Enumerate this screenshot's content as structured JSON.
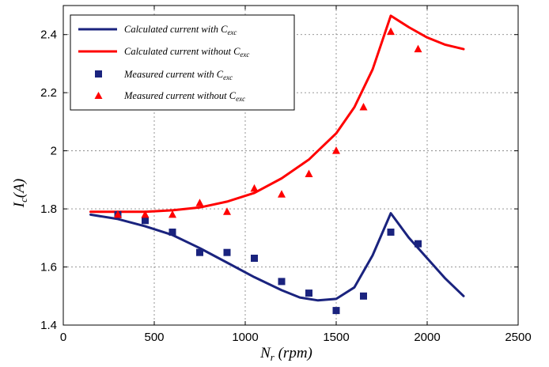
{
  "chart_data": {
    "type": "line",
    "xlabel": {
      "main": "N",
      "sub": "r",
      "rest": " (rpm)"
    },
    "ylabel": {
      "main": "I",
      "sub": "c",
      "rest": "(A)"
    },
    "xlim": [
      0,
      2500
    ],
    "ylim": [
      1.4,
      2.5
    ],
    "x_ticks": [
      0,
      500,
      1000,
      1500,
      2000,
      2500
    ],
    "x_tick_labels": [
      "0",
      "500",
      "1000",
      "1500",
      "2000",
      "2500"
    ],
    "y_ticks": [
      1.4,
      1.6,
      1.8,
      2.0,
      2.2,
      2.4
    ],
    "y_tick_labels": [
      "1.4",
      "1.6",
      "1.8",
      "2",
      "2.2",
      "2.4"
    ],
    "grid": true,
    "legend_position": "top-left",
    "series": [
      {
        "name": "Calculated current with C",
        "name_sub": "exc",
        "kind": "line",
        "color": "#1a237e",
        "points": [
          [
            150,
            1.78
          ],
          [
            300,
            1.765
          ],
          [
            450,
            1.74
          ],
          [
            600,
            1.71
          ],
          [
            750,
            1.665
          ],
          [
            900,
            1.615
          ],
          [
            1050,
            1.565
          ],
          [
            1200,
            1.52
          ],
          [
            1300,
            1.495
          ],
          [
            1400,
            1.485
          ],
          [
            1500,
            1.49
          ],
          [
            1600,
            1.53
          ],
          [
            1700,
            1.64
          ],
          [
            1800,
            1.785
          ],
          [
            1900,
            1.7
          ],
          [
            2000,
            1.63
          ],
          [
            2100,
            1.56
          ],
          [
            2200,
            1.5
          ]
        ]
      },
      {
        "name": "Calculated current without C",
        "name_sub": "exc",
        "kind": "line",
        "color": "#ff0000",
        "points": [
          [
            150,
            1.79
          ],
          [
            300,
            1.79
          ],
          [
            450,
            1.79
          ],
          [
            600,
            1.795
          ],
          [
            750,
            1.805
          ],
          [
            900,
            1.825
          ],
          [
            1050,
            1.855
          ],
          [
            1200,
            1.905
          ],
          [
            1350,
            1.97
          ],
          [
            1500,
            2.06
          ],
          [
            1600,
            2.15
          ],
          [
            1700,
            2.28
          ],
          [
            1800,
            2.465
          ],
          [
            1900,
            2.425
          ],
          [
            2000,
            2.39
          ],
          [
            2100,
            2.365
          ],
          [
            2200,
            2.35
          ]
        ]
      },
      {
        "name": "Measured current with C",
        "name_sub": "exc",
        "kind": "scatter",
        "marker": "square",
        "color": "#1a237e",
        "points": [
          [
            300,
            1.78
          ],
          [
            450,
            1.76
          ],
          [
            600,
            1.72
          ],
          [
            750,
            1.65
          ],
          [
            900,
            1.65
          ],
          [
            1050,
            1.63
          ],
          [
            1200,
            1.55
          ],
          [
            1350,
            1.51
          ],
          [
            1500,
            1.45
          ],
          [
            1650,
            1.5
          ],
          [
            1800,
            1.72
          ],
          [
            1950,
            1.68
          ]
        ]
      },
      {
        "name": "Measured current without C",
        "name_sub": "exc",
        "kind": "scatter",
        "marker": "triangle",
        "color": "#ff0000",
        "points": [
          [
            300,
            1.78
          ],
          [
            450,
            1.78
          ],
          [
            600,
            1.78
          ],
          [
            750,
            1.82
          ],
          [
            900,
            1.79
          ],
          [
            1050,
            1.87
          ],
          [
            1200,
            1.85
          ],
          [
            1350,
            1.92
          ],
          [
            1500,
            2.0
          ],
          [
            1650,
            2.15
          ],
          [
            1800,
            2.41
          ],
          [
            1950,
            2.35
          ]
        ]
      }
    ]
  }
}
